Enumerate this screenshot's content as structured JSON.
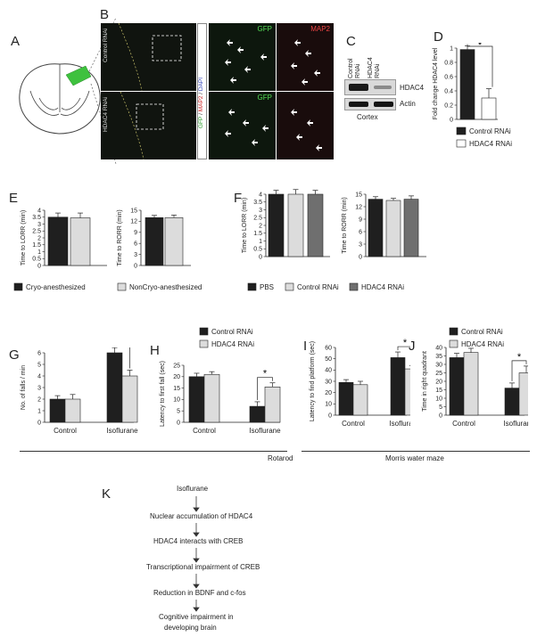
{
  "panels": {
    "A": "A",
    "B": "B",
    "C": "C",
    "D": "D",
    "E": "E",
    "F": "F",
    "G": "G",
    "H": "H",
    "I": "I",
    "J": "J",
    "K": "K"
  },
  "panel_b": {
    "row_labels": [
      "Control RNAi",
      "HDAC4 RNAi"
    ],
    "stain_parts": [
      "GFP",
      "MAP2",
      "DAPI"
    ],
    "gfp_label": "GFP",
    "map2_label": "MAP2"
  },
  "panel_c": {
    "lanes": [
      "Control RNAi",
      "HDAC4 RNAi"
    ],
    "bands": [
      "HDAC4",
      "Actin"
    ],
    "tissue": "Cortex"
  },
  "legends": {
    "control": "Control RNAi",
    "hdac4": "HDAC4 RNAi",
    "cryo": "Cryo-anesthesized",
    "noncryo": "NonCryo-anesthesized",
    "pbs": "PBS"
  },
  "groups": {
    "control": "Control",
    "isoflurane": "Isoflurane"
  },
  "group_captions": {
    "rotarod": "Rotarod",
    "water_maze": "Morris water maze"
  },
  "significance": "*",
  "colors": {
    "dark": "#1f1f1f",
    "light": "#dcdcdc",
    "white": "#ffffff",
    "mid": "#6f6f6f",
    "gfp": "#3fbf3f",
    "map2": "#d03434"
  },
  "chart_data": [
    {
      "panel": "D",
      "type": "bar",
      "ylabel": "Fold change HDAC4 level",
      "ylim": [
        0,
        1.0
      ],
      "yticks": [
        0,
        0.2,
        0.4,
        0.6,
        0.8,
        1.0
      ],
      "series": [
        {
          "name": "Control RNAi",
          "values": [
            0.98
          ],
          "errors": [
            0.05
          ]
        },
        {
          "name": "HDAC4 RNAi",
          "values": [
            0.3
          ],
          "errors": [
            0.13
          ]
        }
      ]
    },
    {
      "panel": "E1",
      "type": "bar",
      "ylabel": "Time to LORR (min)",
      "ylim": [
        0,
        4.0
      ],
      "yticks": [
        0,
        0.5,
        1.0,
        1.5,
        2.0,
        2.5,
        3.0,
        3.5,
        4.0
      ],
      "series": [
        {
          "name": "Cryo-anesthesized",
          "values": [
            3.5
          ],
          "errors": [
            0.3
          ]
        },
        {
          "name": "NonCryo-anesthesized",
          "values": [
            3.45
          ],
          "errors": [
            0.35
          ]
        }
      ]
    },
    {
      "panel": "E2",
      "type": "bar",
      "ylabel": "Time to RORR (min)",
      "ylim": [
        0,
        15
      ],
      "yticks": [
        0,
        3,
        6,
        9,
        12,
        15
      ],
      "series": [
        {
          "name": "Cryo-anesthesized",
          "values": [
            13
          ],
          "errors": [
            0.6
          ]
        },
        {
          "name": "NonCryo-anesthesized",
          "values": [
            13
          ],
          "errors": [
            0.7
          ]
        }
      ]
    },
    {
      "panel": "F1",
      "type": "bar",
      "ylabel": "Time to LORR (min)",
      "ylim": [
        0,
        4.0
      ],
      "yticks": [
        0,
        0.5,
        1.0,
        1.5,
        2.0,
        2.5,
        3.0,
        3.5,
        4.0
      ],
      "series": [
        {
          "name": "PBS",
          "values": [
            4.0
          ],
          "errors": [
            0.25
          ]
        },
        {
          "name": "Control RNAi",
          "values": [
            4.0
          ],
          "errors": [
            0.3
          ]
        },
        {
          "name": "HDAC4 RNAi",
          "values": [
            4.0
          ],
          "errors": [
            0.25
          ]
        }
      ]
    },
    {
      "panel": "F2",
      "type": "bar",
      "ylabel": "Time to RORR (min)",
      "ylim": [
        0,
        15
      ],
      "yticks": [
        0,
        3,
        6,
        9,
        12,
        15
      ],
      "series": [
        {
          "name": "PBS",
          "values": [
            13.8
          ],
          "errors": [
            0.6
          ]
        },
        {
          "name": "Control RNAi",
          "values": [
            13.5
          ],
          "errors": [
            0.5
          ]
        },
        {
          "name": "HDAC4 RNAi",
          "values": [
            13.8
          ],
          "errors": [
            0.8
          ]
        }
      ]
    },
    {
      "panel": "G",
      "type": "bar",
      "ylabel": "No. of falls / min",
      "ylim": [
        0,
        6
      ],
      "yticks": [
        0,
        1,
        2,
        3,
        4,
        5,
        6
      ],
      "categories": [
        "Control",
        "Isoflurane"
      ],
      "series": [
        {
          "name": "Control RNAi",
          "values": [
            2.0,
            6.0
          ],
          "errors": [
            0.3,
            0.45
          ]
        },
        {
          "name": "HDAC4 RNAi",
          "values": [
            2.0,
            4.0
          ],
          "errors": [
            0.4,
            0.5
          ]
        }
      ]
    },
    {
      "panel": "H",
      "type": "bar",
      "ylabel": "Latency to first fall (sec)",
      "ylim": [
        0,
        25
      ],
      "yticks": [
        0,
        5,
        10,
        15,
        20,
        25
      ],
      "categories": [
        "Control",
        "Isoflurane"
      ],
      "series": [
        {
          "name": "Control RNAi",
          "values": [
            20,
            7
          ],
          "errors": [
            1.5,
            2.0
          ]
        },
        {
          "name": "HDAC4 RNAi",
          "values": [
            21,
            15.5
          ],
          "errors": [
            1.2,
            1.8
          ]
        }
      ]
    },
    {
      "panel": "I",
      "type": "bar",
      "ylabel": "Latency to find platform (sec)",
      "ylim": [
        0,
        60
      ],
      "yticks": [
        0,
        10,
        20,
        30,
        40,
        50,
        60
      ],
      "categories": [
        "Control",
        "Isoflurane"
      ],
      "series": [
        {
          "name": "Control RNAi",
          "values": [
            29,
            51
          ],
          "errors": [
            2.5,
            5
          ]
        },
        {
          "name": "HDAC4 RNAi",
          "values": [
            27,
            41
          ],
          "errors": [
            3,
            3
          ]
        }
      ]
    },
    {
      "panel": "J",
      "type": "bar",
      "ylabel": "Time in right quadrant",
      "ylim": [
        0,
        40
      ],
      "yticks": [
        0,
        5,
        10,
        15,
        20,
        25,
        30,
        35,
        40
      ],
      "categories": [
        "Control",
        "Isoflurane"
      ],
      "series": [
        {
          "name": "Control RNAi",
          "values": [
            34,
            16
          ],
          "errors": [
            2.5,
            3
          ]
        },
        {
          "name": "HDAC4 RNAi",
          "values": [
            37,
            25
          ],
          "errors": [
            2.5,
            4
          ]
        }
      ]
    }
  ],
  "flowchart": [
    "Isoflurane",
    "Nuclear accumulation of HDAC4",
    "HDAC4 interacts with CREB",
    "Transcriptional impairment of CREB",
    "Reduction in BDNF and c-fos",
    "Cognitive impairment in",
    "developing brain"
  ]
}
